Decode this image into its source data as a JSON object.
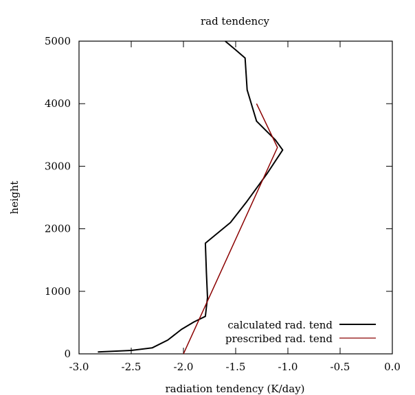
{
  "chart_data": {
    "type": "line",
    "title": "rad tendency",
    "xlabel": "radiation tendency (K/day)",
    "ylabel": "height",
    "xlim": [
      -3.0,
      0.0
    ],
    "ylim": [
      0,
      5000
    ],
    "xticks": [
      "-3.0",
      "-2.5",
      "-2.0",
      "-1.5",
      "-1.0",
      "-0.5",
      "0.0"
    ],
    "yticks": [
      "0",
      "1000",
      "2000",
      "3000",
      "4000",
      "5000"
    ],
    "grid": false,
    "legend_position": "bottom-right",
    "series": [
      {
        "name": "calculated rad. tend",
        "color": "#000000",
        "points": [
          [
            -2.82,
            30
          ],
          [
            -2.5,
            55
          ],
          [
            -2.3,
            95
          ],
          [
            -2.15,
            220
          ],
          [
            -2.02,
            390
          ],
          [
            -1.9,
            510
          ],
          [
            -1.79,
            600
          ],
          [
            -1.77,
            900
          ],
          [
            -1.78,
            1300
          ],
          [
            -1.79,
            1770
          ],
          [
            -1.55,
            2100
          ],
          [
            -1.4,
            2420
          ],
          [
            -1.2,
            2880
          ],
          [
            -1.05,
            3260
          ],
          [
            -1.12,
            3420
          ],
          [
            -1.3,
            3720
          ],
          [
            -1.39,
            4220
          ],
          [
            -1.41,
            4730
          ],
          [
            -1.5,
            4860
          ],
          [
            -1.6,
            5000
          ]
        ]
      },
      {
        "name": "prescribed rad. tend",
        "color": "#8b0000",
        "points": [
          [
            -2.0,
            0
          ],
          [
            -1.1,
            3300
          ],
          [
            -1.3,
            4000
          ]
        ]
      }
    ]
  }
}
